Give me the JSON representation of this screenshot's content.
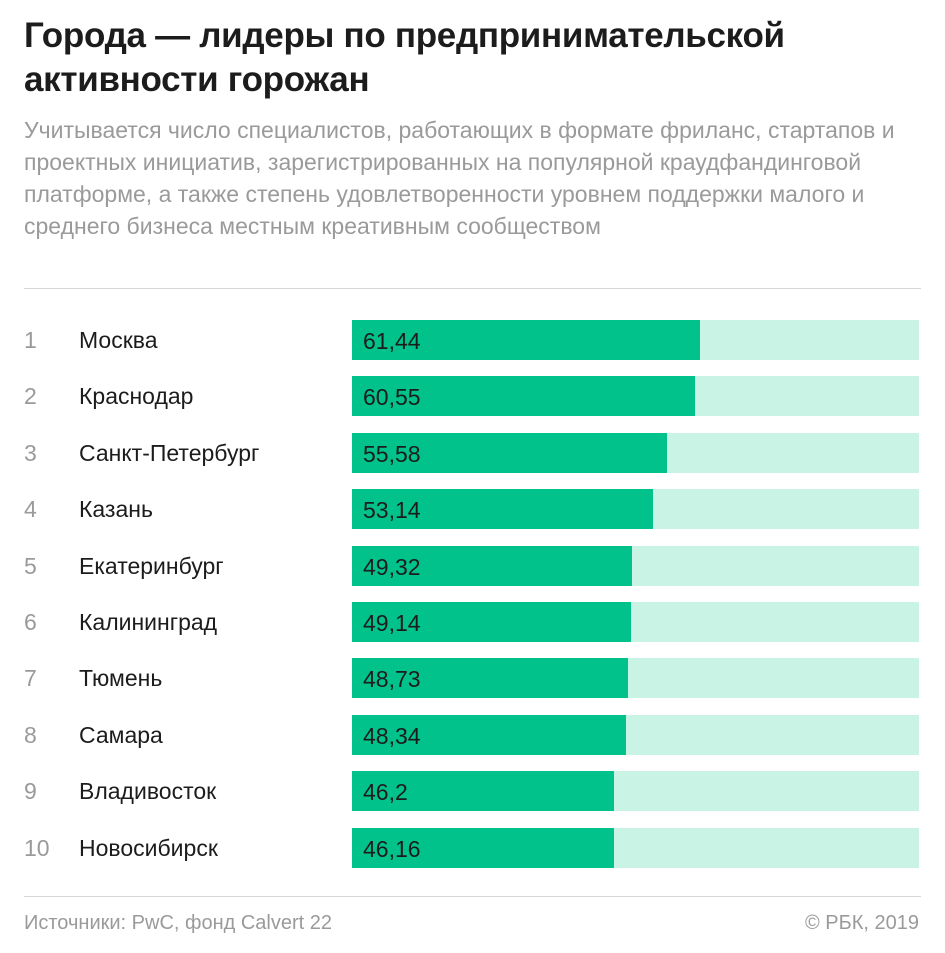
{
  "header": {
    "title": "Города — лидеры по предпринимательской активности горожан",
    "subtitle": "Учитывается число специалистов, работающих в формате фриланс, стартапов и проектных инициатив, зарегистрированных на популярной краудфандинговой платформе, а также степень удовлетворенности уровнем поддержки малого и среднего бизнеса местным креативным сообществом"
  },
  "chart_data": {
    "type": "bar",
    "orientation": "horizontal",
    "title": "Города — лидеры по предпринимательской активности горожан",
    "categories": [
      "Москва",
      "Краснодар",
      "Санкт-Петербург",
      "Казань",
      "Екатеринбург",
      "Калининград",
      "Тюмень",
      "Самара",
      "Владивосток",
      "Новосибирск"
    ],
    "ranks": [
      "1",
      "2",
      "3",
      "4",
      "5",
      "6",
      "7",
      "8",
      "9",
      "10"
    ],
    "values": [
      61.44,
      60.55,
      55.58,
      53.14,
      49.32,
      49.14,
      48.73,
      48.34,
      46.2,
      46.16
    ],
    "value_labels": [
      "61,44",
      "60,55",
      "55,58",
      "53,14",
      "49,32",
      "49,14",
      "48,73",
      "48,34",
      "46,2",
      "46,16"
    ],
    "xlim": [
      0,
      100
    ],
    "colors": {
      "bar": "#00c28a",
      "track": "#c8f3e5"
    },
    "legend": "none",
    "grid": false
  },
  "footer": {
    "source": "Источники: PwC, фонд Calvert 22",
    "copyright": "© РБК, 2019"
  }
}
